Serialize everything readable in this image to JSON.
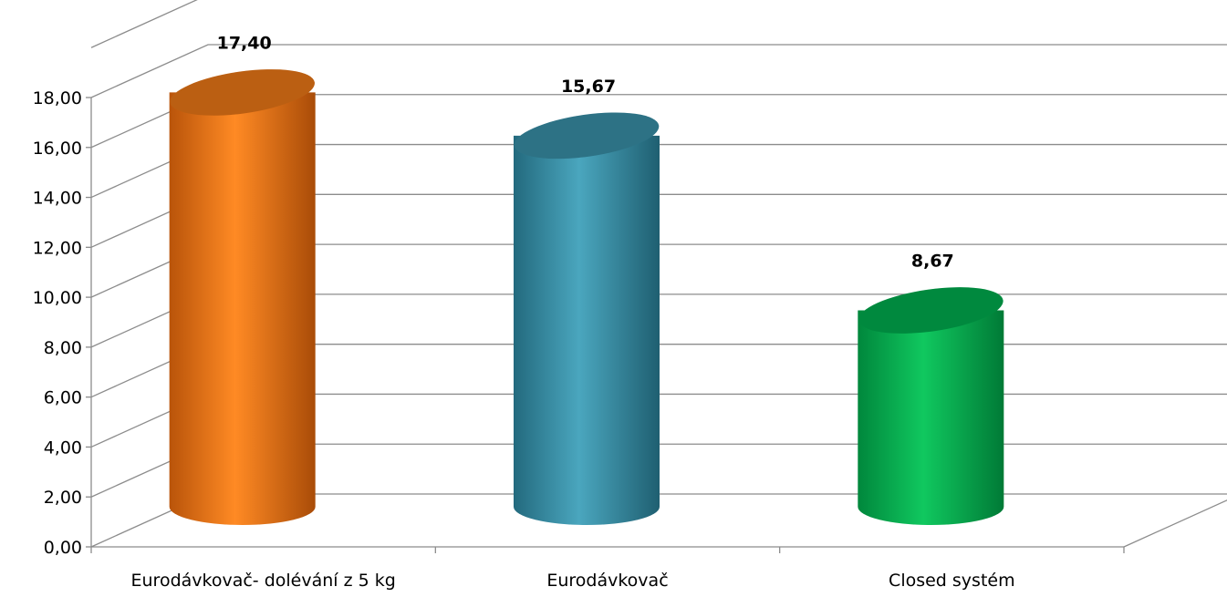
{
  "chart_data": {
    "type": "bar",
    "style": "3d-cylinder",
    "categories": [
      "Eurodávkovač- dolévání z 5 kg",
      "Eurodávkovač",
      "Closed systém"
    ],
    "values": [
      17.4,
      15.67,
      8.67
    ],
    "data_labels": [
      "17,40",
      "15,67",
      "8,67"
    ],
    "bar_colors": [
      "#f07a18",
      "#3a93ab",
      "#00b050"
    ],
    "ylim": [
      0,
      18
    ],
    "yticks": [
      0,
      2,
      4,
      6,
      8,
      10,
      12,
      14,
      16,
      18
    ],
    "ytick_labels": [
      "0,00",
      "2,00",
      "4,00",
      "6,00",
      "8,00",
      "10,00",
      "12,00",
      "14,00",
      "16,00",
      "18,00"
    ],
    "title": "",
    "xlabel": "",
    "ylabel": "",
    "grid": true,
    "legend": false
  }
}
